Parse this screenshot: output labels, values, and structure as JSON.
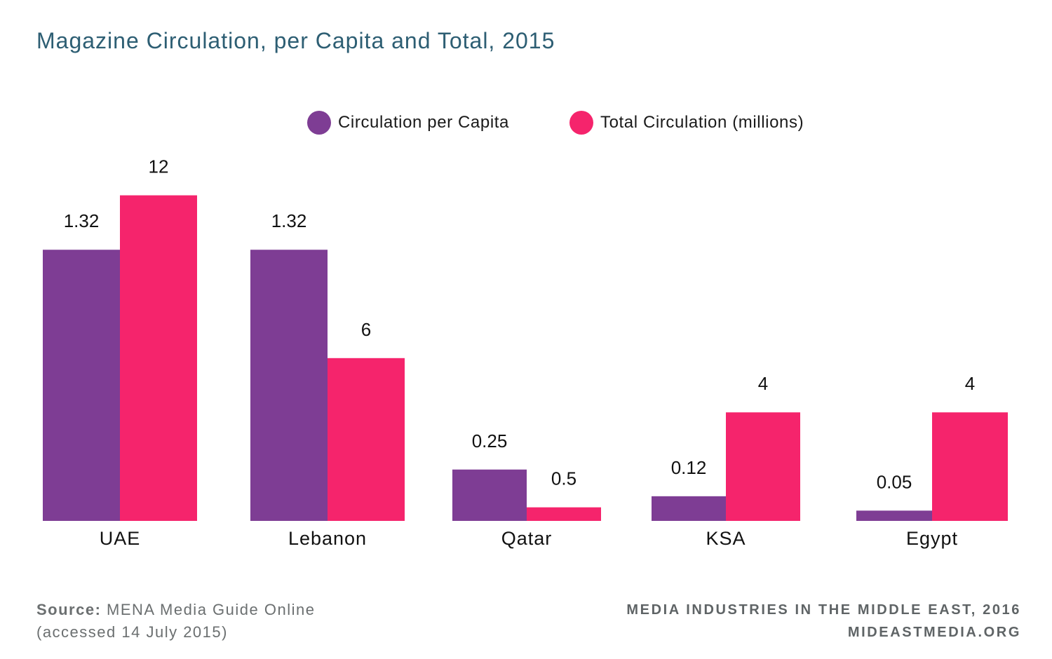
{
  "title": "Magazine Circulation, per Capita and Total, 2015",
  "colors": {
    "per_capita": "#7e3d94",
    "total": "#f5246c",
    "title": "#2d5e73",
    "footer": "#6b6f70"
  },
  "chart_data": {
    "type": "bar",
    "title": "Magazine Circulation, per Capita and Total, 2015",
    "categories": [
      "UAE",
      "Lebanon",
      "Qatar",
      "KSA",
      "Egypt"
    ],
    "series": [
      {
        "name": "Circulation per Capita",
        "values": [
          1.32,
          1.32,
          0.25,
          0.12,
          0.05
        ],
        "labels": [
          "1.32",
          "1.32",
          "0.25",
          "0.12",
          "0.05"
        ],
        "color": "#7e3d94"
      },
      {
        "name": "Total Circulation (millions)",
        "values": [
          12,
          6,
          0.5,
          4,
          4
        ],
        "labels": [
          "12",
          "6",
          "0.5",
          "4",
          "4"
        ],
        "color": "#f5246c"
      }
    ],
    "legend_position": "top-center",
    "grid": false
  },
  "footer": {
    "source_label": "Source:",
    "source_text": "MENA Media Guide Online",
    "accessed": "(accessed 14 July 2015)",
    "publication": "MEDIA INDUSTRIES IN THE MIDDLE EAST, 2016",
    "website": "MIDEASTMEDIA.ORG"
  }
}
